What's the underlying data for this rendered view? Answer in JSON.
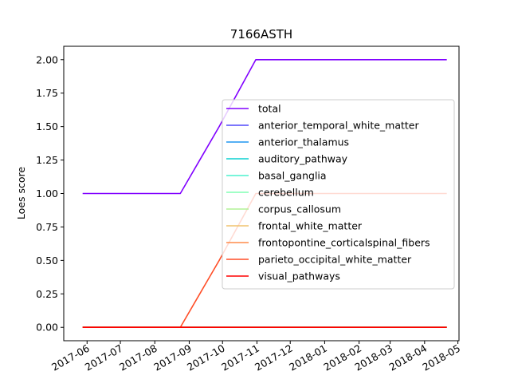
{
  "chart_data": {
    "type": "line",
    "title": "7166ASTH",
    "xlabel": "",
    "ylabel": "Loes score",
    "ylim": [
      -0.1,
      2.1
    ],
    "y_ticks": [
      0.0,
      0.25,
      0.5,
      0.75,
      1.0,
      1.25,
      1.5,
      1.75,
      2.0
    ],
    "y_tick_labels": [
      "0.00",
      "0.25",
      "0.50",
      "0.75",
      "1.00",
      "1.25",
      "1.50",
      "1.75",
      "2.00"
    ],
    "xlim": [
      "2017-05-11",
      "2018-05-02"
    ],
    "x_ticks": [
      "2017-06-01",
      "2017-07-01",
      "2017-08-01",
      "2017-09-01",
      "2017-10-01",
      "2017-11-01",
      "2017-12-01",
      "2018-01-01",
      "2018-02-01",
      "2018-03-01",
      "2018-04-01",
      "2018-05-01"
    ],
    "x_tick_labels": [
      "2017-06",
      "2017-07",
      "2017-08",
      "2017-09",
      "2017-10",
      "2017-11",
      "2017-12",
      "2018-01",
      "2018-02",
      "2018-03",
      "2018-04",
      "2018-05"
    ],
    "x": [
      "2017-05-28",
      "2017-08-24",
      "2017-09-28",
      "2017-10-31",
      "2018-04-21"
    ],
    "series": [
      {
        "name": "total",
        "color": "#8000ff",
        "values": [
          1,
          1,
          1.5,
          2,
          2
        ]
      },
      {
        "name": "anterior_temporal_white_matter",
        "color": "#5148fc",
        "values": [
          0,
          0,
          0,
          0,
          0
        ]
      },
      {
        "name": "anterior_thalamus",
        "color": "#1f95f0",
        "values": [
          0,
          0,
          0,
          0,
          0
        ]
      },
      {
        "name": "auditory_pathway",
        "color": "#0cd1d1",
        "values": [
          0,
          0,
          0,
          0,
          0
        ]
      },
      {
        "name": "basal_ganglia",
        "color": "#4cf2ce",
        "values": [
          0,
          0,
          0,
          0,
          0
        ]
      },
      {
        "name": "cerebellum",
        "color": "#80ffb4",
        "values": [
          0,
          0,
          0,
          0,
          0
        ]
      },
      {
        "name": "corpus_callosum",
        "color": "#b2f296",
        "values": [
          0,
          0,
          0,
          0,
          0
        ]
      },
      {
        "name": "frontal_white_matter",
        "color": "#f0c46e",
        "values": [
          0,
          0,
          0,
          0,
          0
        ]
      },
      {
        "name": "frontopontine_corticalspinal_fibers",
        "color": "#ff8c4a",
        "values": [
          0,
          0,
          0,
          0,
          0
        ]
      },
      {
        "name": "parieto_occipital_white_matter",
        "color": "#ff4d26",
        "values": [
          0,
          0,
          0.5,
          1,
          1
        ]
      },
      {
        "name": "visual_pathways",
        "color": "#ff0000",
        "values": [
          0,
          0,
          0,
          0,
          0
        ]
      }
    ],
    "grid": false,
    "legend_position": "center-right"
  }
}
